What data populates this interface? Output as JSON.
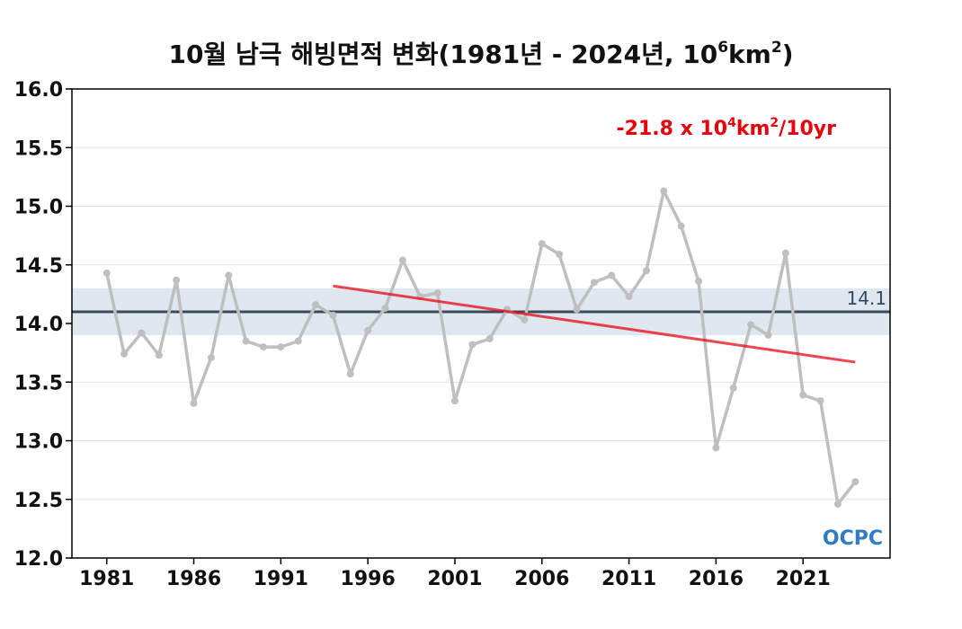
{
  "chart_data": {
    "type": "line",
    "title": {
      "main": "10월 남극 해빙면적 변화(1981년 - 2024년, 10",
      "sup1": "6",
      "mid": "km",
      "sup2": "2",
      "end": ")"
    },
    "xlabel": "",
    "ylabel": "",
    "xlim": [
      1979,
      2026
    ],
    "ylim": [
      12.0,
      16.0
    ],
    "x_ticks": [
      "1981",
      "1986",
      "1991",
      "1996",
      "2001",
      "2006",
      "2011",
      "2016",
      "2021"
    ],
    "y_ticks": [
      "16.0",
      "15.5",
      "15.0",
      "14.5",
      "14.0",
      "13.5",
      "13.0",
      "12.5",
      "12.0"
    ],
    "grid": "horizontal",
    "series": [
      {
        "color": "#bfbfbf",
        "x": [
          1981,
          1982,
          1983,
          1984,
          1985,
          1986,
          1987,
          1988,
          1989,
          1990,
          1991,
          1992,
          1993,
          1994,
          1995,
          1996,
          1997,
          1998,
          1999,
          2000,
          2001,
          2002,
          2003,
          2004,
          2005,
          2006,
          2007,
          2008,
          2009,
          2010,
          2011,
          2012,
          2013,
          2014,
          2015,
          2016,
          2017,
          2018,
          2019,
          2020,
          2021,
          2022,
          2023,
          2024
        ],
        "values": [
          14.43,
          13.74,
          13.92,
          13.73,
          14.37,
          13.32,
          13.71,
          14.41,
          13.85,
          13.8,
          13.8,
          13.85,
          14.16,
          14.07,
          13.57,
          13.94,
          14.13,
          14.54,
          14.23,
          14.26,
          13.34,
          13.82,
          13.87,
          14.12,
          14.03,
          14.68,
          14.59,
          14.12,
          14.35,
          14.41,
          14.23,
          14.45,
          15.13,
          14.83,
          14.36,
          12.94,
          13.45,
          13.99,
          13.9,
          14.6,
          13.39,
          13.34,
          12.46,
          12.65
        ]
      }
    ],
    "mean": {
      "value": 14.1,
      "label": "14.1",
      "band": [
        13.9,
        14.3
      ],
      "line_color": "#3b4a5a",
      "band_color": "#dfe8f1"
    },
    "trend": {
      "x": [
        1994,
        2024
      ],
      "y": [
        14.32,
        13.67
      ],
      "color": "#e8000b",
      "label_main": "-21.8 x 10",
      "label_sup1": "4",
      "label_mid": "km",
      "label_sup2": "2",
      "label_end": "/10yr"
    },
    "logo": "OCPC"
  }
}
